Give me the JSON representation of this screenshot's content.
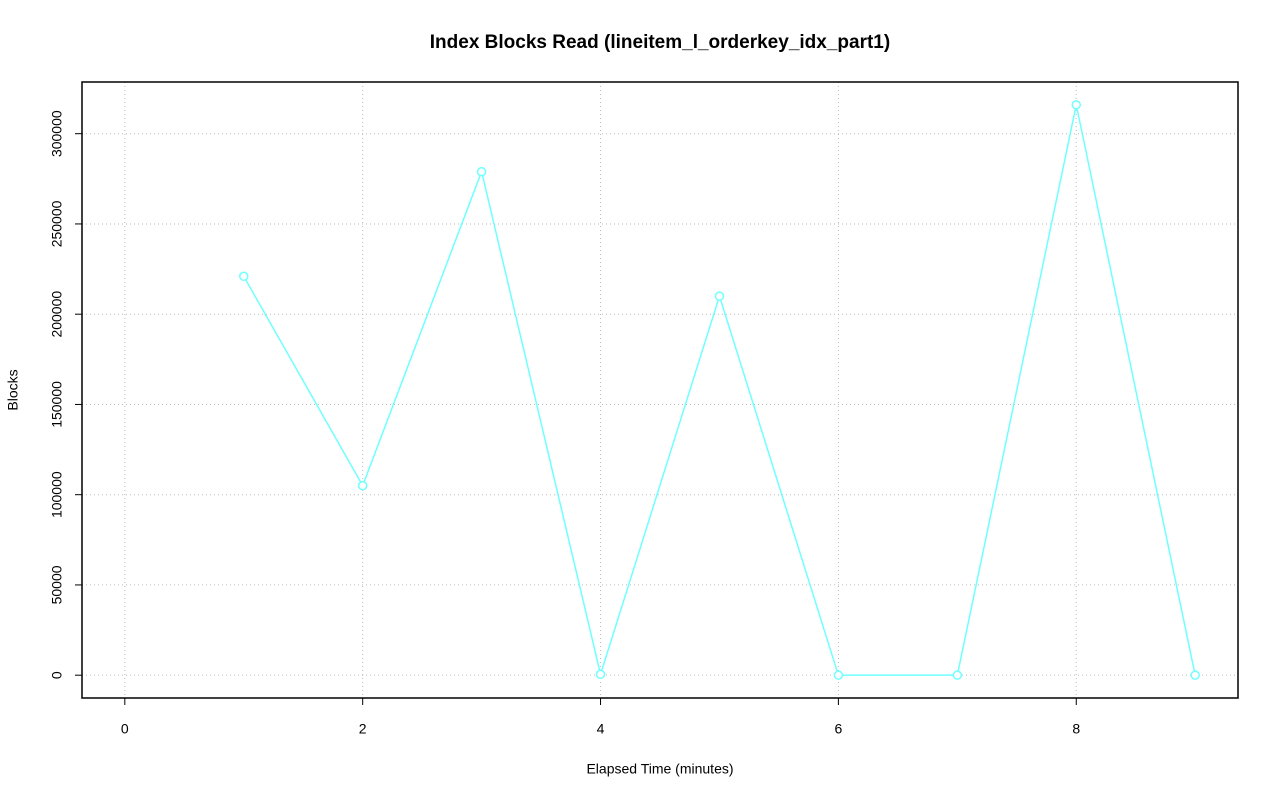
{
  "chart_data": {
    "type": "line",
    "title": "Index Blocks Read (lineitem_l_orderkey_idx_part1)",
    "x_label": "Elapsed Time (minutes)",
    "y_label": "Blocks",
    "x": [
      1,
      2,
      3,
      4,
      5,
      6,
      7,
      8,
      9
    ],
    "series": [
      {
        "name": "Blocks",
        "color": "#70ffff",
        "values": [
          221000,
          105000,
          279000,
          500,
          210000,
          0,
          0,
          316000,
          0
        ]
      }
    ],
    "xlim": [
      -0.36,
      9.36
    ],
    "xticks": [
      0,
      2,
      4,
      6,
      8
    ],
    "ylim": [
      -12640,
      328640
    ],
    "yticks": [
      0,
      50000,
      100000,
      150000,
      200000,
      250000,
      300000
    ],
    "grid": true
  }
}
